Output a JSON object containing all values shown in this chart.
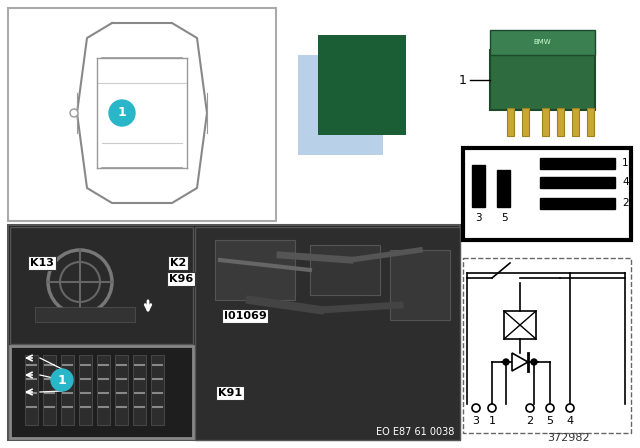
{
  "background_color": "#ffffff",
  "dark_green": "#1b5e35",
  "light_blue": "#b8d0e8",
  "circle_color": "#29b6c8",
  "footnote_number": "372982",
  "eo_text": "EO E87 61 0038",
  "relay_number_label": "1",
  "k_labels": [
    [
      "K2",
      185,
      155
    ],
    [
      "K96",
      185,
      168
    ],
    [
      "K13",
      35,
      168
    ],
    [
      "I01069",
      225,
      285
    ],
    [
      "K91",
      200,
      318
    ]
  ],
  "pin_box_labels": [
    [
      "3",
      0
    ],
    [
      "5",
      1
    ],
    [
      "1",
      2
    ],
    [
      "4",
      3
    ],
    [
      "2",
      4
    ]
  ],
  "circuit_pin_labels": [
    [
      "3",
      0
    ],
    [
      "1",
      1
    ],
    [
      "2",
      2
    ],
    [
      "5",
      3
    ],
    [
      "4",
      4
    ]
  ]
}
